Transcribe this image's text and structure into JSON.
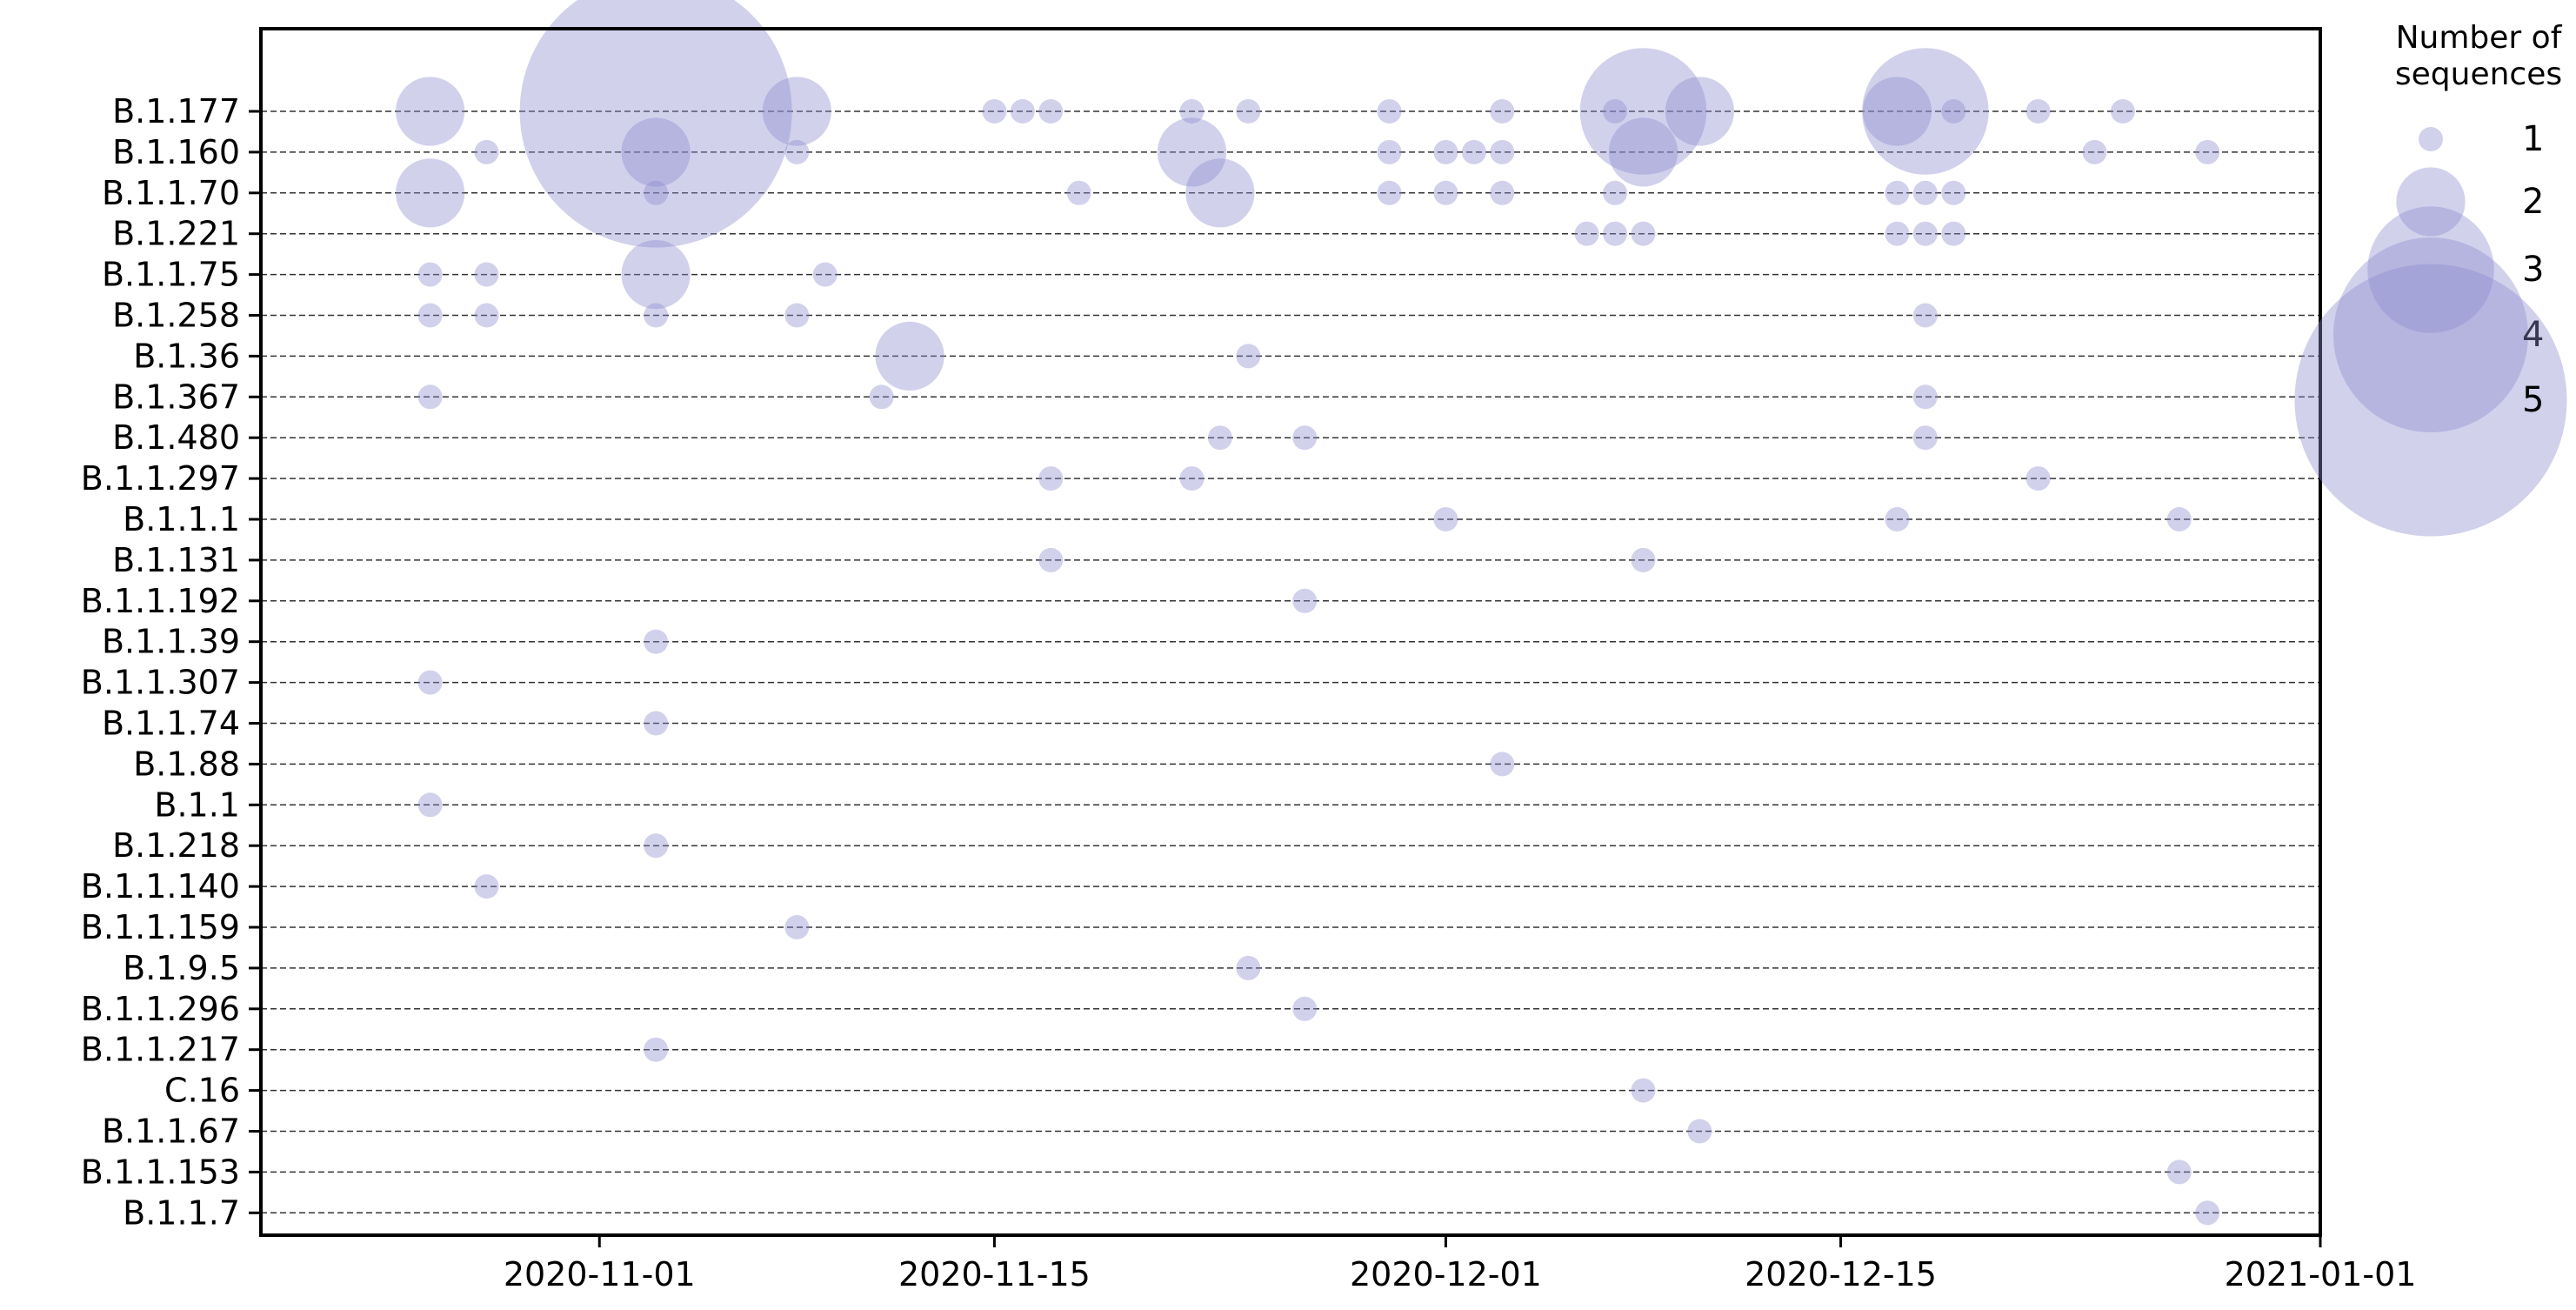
{
  "chart_data": {
    "type": "scatter",
    "subtype": "bubble",
    "title": "",
    "xlabel": "",
    "ylabel": "",
    "x_type": "date",
    "xlim": [
      "2020-10-20",
      "2021-01-01"
    ],
    "x_ticks": [
      "2020-11-01",
      "2020-11-15",
      "2020-12-01",
      "2020-12-15",
      "2021-01-01"
    ],
    "grid": "horizontal dashed lines at each lineage",
    "marker_color": "#8c8ccf",
    "marker_alpha": 0.4,
    "lineages": [
      "B.1.177",
      "B.1.160",
      "B.1.1.70",
      "B.1.221",
      "B.1.1.75",
      "B.1.258",
      "B.1.36",
      "B.1.367",
      "B.1.480",
      "B.1.1.297",
      "B.1.1.1",
      "B.1.131",
      "B.1.1.192",
      "B.1.1.39",
      "B.1.1.307",
      "B.1.1.74",
      "B.1.88",
      "B.1.1",
      "B.1.218",
      "B.1.1.140",
      "B.1.1.159",
      "B.1.9.5",
      "B.1.1.296",
      "B.1.1.217",
      "C.16",
      "B.1.1.67",
      "B.1.1.153",
      "B.1.1.7"
    ],
    "legend": {
      "title": "Number of\nsequences",
      "position": "right",
      "sizes": [
        1,
        2,
        3,
        4,
        5
      ]
    },
    "points": [
      {
        "lineage": "B.1.177",
        "date": "2020-10-26",
        "count": 2
      },
      {
        "lineage": "B.1.177",
        "date": "2020-11-03",
        "count": 5
      },
      {
        "lineage": "B.1.177",
        "date": "2020-11-08",
        "count": 2
      },
      {
        "lineage": "B.1.177",
        "date": "2020-11-15",
        "count": 1
      },
      {
        "lineage": "B.1.177",
        "date": "2020-11-16",
        "count": 1
      },
      {
        "lineage": "B.1.177",
        "date": "2020-11-17",
        "count": 1
      },
      {
        "lineage": "B.1.177",
        "date": "2020-11-22",
        "count": 1
      },
      {
        "lineage": "B.1.177",
        "date": "2020-11-24",
        "count": 1
      },
      {
        "lineage": "B.1.177",
        "date": "2020-11-29",
        "count": 1
      },
      {
        "lineage": "B.1.177",
        "date": "2020-12-03",
        "count": 1
      },
      {
        "lineage": "B.1.177",
        "date": "2020-12-07",
        "count": 1
      },
      {
        "lineage": "B.1.177",
        "date": "2020-12-08",
        "count": 3
      },
      {
        "lineage": "B.1.177",
        "date": "2020-12-10",
        "count": 2
      },
      {
        "lineage": "B.1.177",
        "date": "2020-12-17",
        "count": 2
      },
      {
        "lineage": "B.1.177",
        "date": "2020-12-18",
        "count": 3
      },
      {
        "lineage": "B.1.177",
        "date": "2020-12-19",
        "count": 1
      },
      {
        "lineage": "B.1.177",
        "date": "2020-12-22",
        "count": 1
      },
      {
        "lineage": "B.1.177",
        "date": "2020-12-25",
        "count": 1
      },
      {
        "lineage": "B.1.160",
        "date": "2020-10-28",
        "count": 1
      },
      {
        "lineage": "B.1.160",
        "date": "2020-11-03",
        "count": 2
      },
      {
        "lineage": "B.1.160",
        "date": "2020-11-08",
        "count": 1
      },
      {
        "lineage": "B.1.160",
        "date": "2020-11-22",
        "count": 2
      },
      {
        "lineage": "B.1.160",
        "date": "2020-11-29",
        "count": 1
      },
      {
        "lineage": "B.1.160",
        "date": "2020-12-01",
        "count": 1
      },
      {
        "lineage": "B.1.160",
        "date": "2020-12-02",
        "count": 1
      },
      {
        "lineage": "B.1.160",
        "date": "2020-12-03",
        "count": 1
      },
      {
        "lineage": "B.1.160",
        "date": "2020-12-08",
        "count": 2
      },
      {
        "lineage": "B.1.160",
        "date": "2020-12-24",
        "count": 1
      },
      {
        "lineage": "B.1.160",
        "date": "2020-12-28",
        "count": 1
      },
      {
        "lineage": "B.1.1.70",
        "date": "2020-10-26",
        "count": 2
      },
      {
        "lineage": "B.1.1.70",
        "date": "2020-11-03",
        "count": 1
      },
      {
        "lineage": "B.1.1.70",
        "date": "2020-11-18",
        "count": 1
      },
      {
        "lineage": "B.1.1.70",
        "date": "2020-11-23",
        "count": 2
      },
      {
        "lineage": "B.1.1.70",
        "date": "2020-11-29",
        "count": 1
      },
      {
        "lineage": "B.1.1.70",
        "date": "2020-12-01",
        "count": 1
      },
      {
        "lineage": "B.1.1.70",
        "date": "2020-12-03",
        "count": 1
      },
      {
        "lineage": "B.1.1.70",
        "date": "2020-12-07",
        "count": 1
      },
      {
        "lineage": "B.1.1.70",
        "date": "2020-12-17",
        "count": 1
      },
      {
        "lineage": "B.1.1.70",
        "date": "2020-12-18",
        "count": 1
      },
      {
        "lineage": "B.1.1.70",
        "date": "2020-12-19",
        "count": 1
      },
      {
        "lineage": "B.1.221",
        "date": "2020-12-06",
        "count": 1
      },
      {
        "lineage": "B.1.221",
        "date": "2020-12-07",
        "count": 1
      },
      {
        "lineage": "B.1.221",
        "date": "2020-12-08",
        "count": 1
      },
      {
        "lineage": "B.1.221",
        "date": "2020-12-17",
        "count": 1
      },
      {
        "lineage": "B.1.221",
        "date": "2020-12-18",
        "count": 1
      },
      {
        "lineage": "B.1.221",
        "date": "2020-12-19",
        "count": 1
      },
      {
        "lineage": "B.1.1.75",
        "date": "2020-10-26",
        "count": 1
      },
      {
        "lineage": "B.1.1.75",
        "date": "2020-10-28",
        "count": 1
      },
      {
        "lineage": "B.1.1.75",
        "date": "2020-11-03",
        "count": 2
      },
      {
        "lineage": "B.1.1.75",
        "date": "2020-11-09",
        "count": 1
      },
      {
        "lineage": "B.1.258",
        "date": "2020-10-26",
        "count": 1
      },
      {
        "lineage": "B.1.258",
        "date": "2020-10-28",
        "count": 1
      },
      {
        "lineage": "B.1.258",
        "date": "2020-11-03",
        "count": 1
      },
      {
        "lineage": "B.1.258",
        "date": "2020-11-08",
        "count": 1
      },
      {
        "lineage": "B.1.258",
        "date": "2020-12-18",
        "count": 1
      },
      {
        "lineage": "B.1.36",
        "date": "2020-11-12",
        "count": 2
      },
      {
        "lineage": "B.1.36",
        "date": "2020-11-24",
        "count": 1
      },
      {
        "lineage": "B.1.367",
        "date": "2020-10-26",
        "count": 1
      },
      {
        "lineage": "B.1.367",
        "date": "2020-11-11",
        "count": 1
      },
      {
        "lineage": "B.1.367",
        "date": "2020-12-18",
        "count": 1
      },
      {
        "lineage": "B.1.480",
        "date": "2020-11-23",
        "count": 1
      },
      {
        "lineage": "B.1.480",
        "date": "2020-11-26",
        "count": 1
      },
      {
        "lineage": "B.1.480",
        "date": "2020-12-18",
        "count": 1
      },
      {
        "lineage": "B.1.1.297",
        "date": "2020-11-17",
        "count": 1
      },
      {
        "lineage": "B.1.1.297",
        "date": "2020-11-22",
        "count": 1
      },
      {
        "lineage": "B.1.1.297",
        "date": "2020-12-22",
        "count": 1
      },
      {
        "lineage": "B.1.1.1",
        "date": "2020-12-01",
        "count": 1
      },
      {
        "lineage": "B.1.1.1",
        "date": "2020-12-17",
        "count": 1
      },
      {
        "lineage": "B.1.1.1",
        "date": "2020-12-27",
        "count": 1
      },
      {
        "lineage": "B.1.131",
        "date": "2020-11-17",
        "count": 1
      },
      {
        "lineage": "B.1.131",
        "date": "2020-12-08",
        "count": 1
      },
      {
        "lineage": "B.1.1.192",
        "date": "2020-11-26",
        "count": 1
      },
      {
        "lineage": "B.1.1.39",
        "date": "2020-11-03",
        "count": 1
      },
      {
        "lineage": "B.1.1.307",
        "date": "2020-10-26",
        "count": 1
      },
      {
        "lineage": "B.1.1.74",
        "date": "2020-11-03",
        "count": 1
      },
      {
        "lineage": "B.1.88",
        "date": "2020-12-03",
        "count": 1
      },
      {
        "lineage": "B.1.1",
        "date": "2020-10-26",
        "count": 1
      },
      {
        "lineage": "B.1.218",
        "date": "2020-11-03",
        "count": 1
      },
      {
        "lineage": "B.1.1.140",
        "date": "2020-10-28",
        "count": 1
      },
      {
        "lineage": "B.1.1.159",
        "date": "2020-11-08",
        "count": 1
      },
      {
        "lineage": "B.1.9.5",
        "date": "2020-11-24",
        "count": 1
      },
      {
        "lineage": "B.1.1.296",
        "date": "2020-11-26",
        "count": 1
      },
      {
        "lineage": "B.1.1.217",
        "date": "2020-11-03",
        "count": 1
      },
      {
        "lineage": "C.16",
        "date": "2020-12-08",
        "count": 1
      },
      {
        "lineage": "B.1.1.67",
        "date": "2020-12-10",
        "count": 1
      },
      {
        "lineage": "B.1.1.153",
        "date": "2020-12-27",
        "count": 1
      },
      {
        "lineage": "B.1.1.7",
        "date": "2020-12-28",
        "count": 1
      }
    ]
  }
}
